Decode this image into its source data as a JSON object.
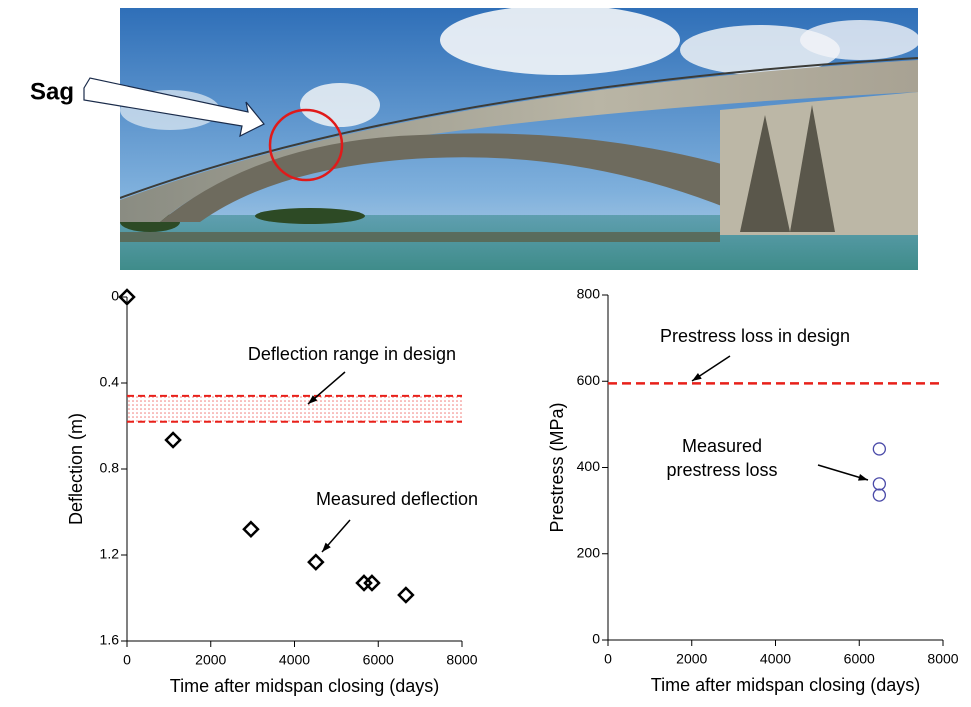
{
  "photo": {
    "label": "Sag"
  },
  "chart_data": [
    {
      "type": "scatter",
      "x_label": "Time after midspan closing (days)",
      "y_label": "Deflection (m)",
      "xlim": [
        0,
        8000
      ],
      "xticks": [
        0,
        2000,
        4000,
        6000,
        8000
      ],
      "ylim": [
        0,
        1.6
      ],
      "yticks": [
        0,
        0.4,
        0.8,
        1.2,
        1.6
      ],
      "invert_y": true,
      "design_range": [
        0.46,
        0.58
      ],
      "design_color": "#e8201a",
      "annotations": [
        {
          "text": "Deflection range in design"
        },
        {
          "text": "Measured deflection"
        }
      ],
      "series": [
        {
          "marker": "diamond",
          "color": "#000000",
          "x": [
            0,
            1100,
            2960,
            4510,
            5660,
            5850,
            6660
          ],
          "values": [
            0,
            0.665,
            1.08,
            1.233,
            1.33,
            1.33,
            1.386
          ]
        }
      ]
    },
    {
      "type": "scatter",
      "x_label": "Time after midspan closing (days)",
      "y_label": "Prestress (MPa)",
      "xlim": [
        0,
        8000
      ],
      "xticks": [
        0,
        2000,
        4000,
        6000,
        8000
      ],
      "ylim": [
        0,
        800
      ],
      "yticks": [
        0,
        200,
        400,
        600,
        800
      ],
      "invert_y": false,
      "design_value": 595,
      "design_color": "#e8201a",
      "annotations": [
        {
          "text": "Prestress loss in design"
        },
        {
          "lines": [
            "Measured",
            "prestress loss"
          ]
        }
      ],
      "series": [
        {
          "marker": "circle",
          "color": "#4a4aa8",
          "x": [
            6480,
            6480,
            6480
          ],
          "values": [
            443,
            362,
            336
          ]
        }
      ]
    }
  ]
}
